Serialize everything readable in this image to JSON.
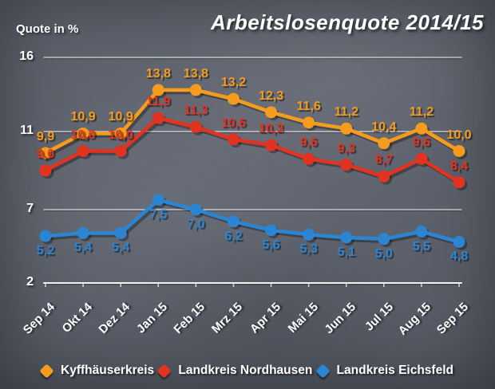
{
  "title": "Arbeitslosenquote 2014/15",
  "y_axis_title": "Quote in %",
  "chart_data": {
    "type": "line",
    "categories": [
      "Sep 14",
      "Okt 14",
      "Dez 14",
      "Jan 15",
      "Feb 15",
      "Mrz 15",
      "Apr 15",
      "Mai 15",
      "Jun 15",
      "Jul 15",
      "Aug 15",
      "Sep 15"
    ],
    "y_ticks": [
      16,
      11,
      7,
      2
    ],
    "ylim": [
      2,
      16
    ],
    "grid": true,
    "legend_position": "bottom",
    "value_label_format": "decimal-comma",
    "series": [
      {
        "name": "Kyffhäuserkreis",
        "color": "#f59b1e",
        "label_position": "above",
        "values": [
          9.9,
          10.9,
          10.9,
          13.8,
          13.8,
          13.2,
          12.3,
          11.6,
          11.2,
          10.4,
          11.2,
          10.0
        ]
      },
      {
        "name": "Landkreis Nordhausen",
        "color": "#e23320",
        "label_position": "above",
        "values": [
          9.0,
          10.0,
          10.0,
          11.9,
          11.3,
          10.6,
          10.3,
          9.6,
          9.3,
          8.7,
          9.6,
          8.4
        ]
      },
      {
        "name": "Landkreis Eichsfeld",
        "color": "#2c85d2",
        "label_position": "below",
        "values": [
          5.2,
          5.4,
          5.4,
          7.5,
          7.0,
          6.2,
          5.6,
          5.3,
          5.1,
          5.0,
          5.5,
          4.8
        ]
      }
    ]
  }
}
